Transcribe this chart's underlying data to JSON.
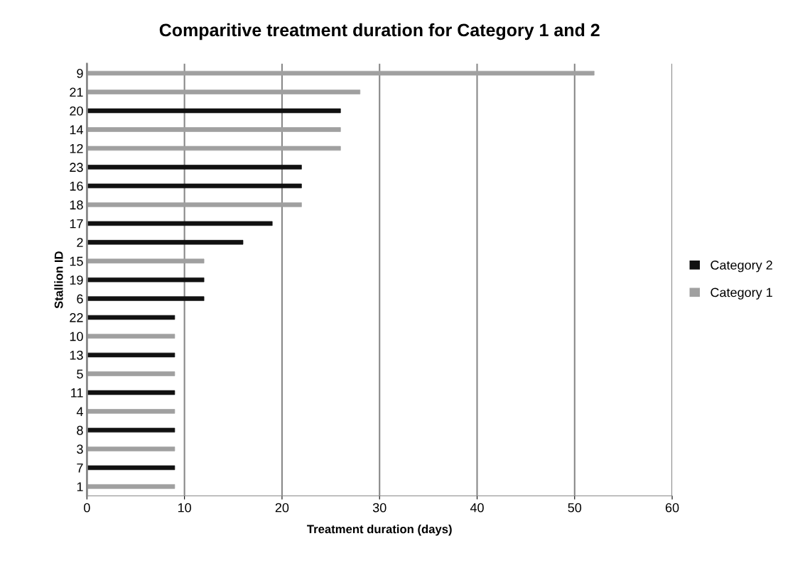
{
  "chart_data": {
    "type": "bar",
    "orientation": "horizontal",
    "title": "Comparitive treatment duration for Category 1 and 2",
    "xlabel": "Treatment duration (days)",
    "ylabel": "Stallion ID",
    "categories": [
      "9",
      "21",
      "20",
      "14",
      "12",
      "23",
      "16",
      "18",
      "17",
      "2",
      "15",
      "19",
      "6",
      "22",
      "10",
      "13",
      "5",
      "11",
      "4",
      "8",
      "3",
      "7",
      "1"
    ],
    "series": [
      {
        "name": "Category 2",
        "color": "#111111",
        "values": [
          null,
          null,
          26,
          null,
          null,
          22,
          22,
          null,
          19,
          16,
          null,
          12,
          12,
          9,
          null,
          9,
          null,
          9,
          null,
          9,
          null,
          9,
          null
        ]
      },
      {
        "name": "Category 1",
        "color": "#a0a0a0",
        "values": [
          52,
          28,
          null,
          26,
          26,
          null,
          null,
          22,
          null,
          null,
          12,
          null,
          null,
          null,
          9,
          null,
          9,
          null,
          9,
          null,
          9,
          null,
          9
        ]
      }
    ],
    "xlim": [
      0,
      60
    ],
    "xticks": [
      0,
      10,
      20,
      30,
      40,
      50,
      60
    ],
    "grid": "x",
    "legend": "right"
  }
}
